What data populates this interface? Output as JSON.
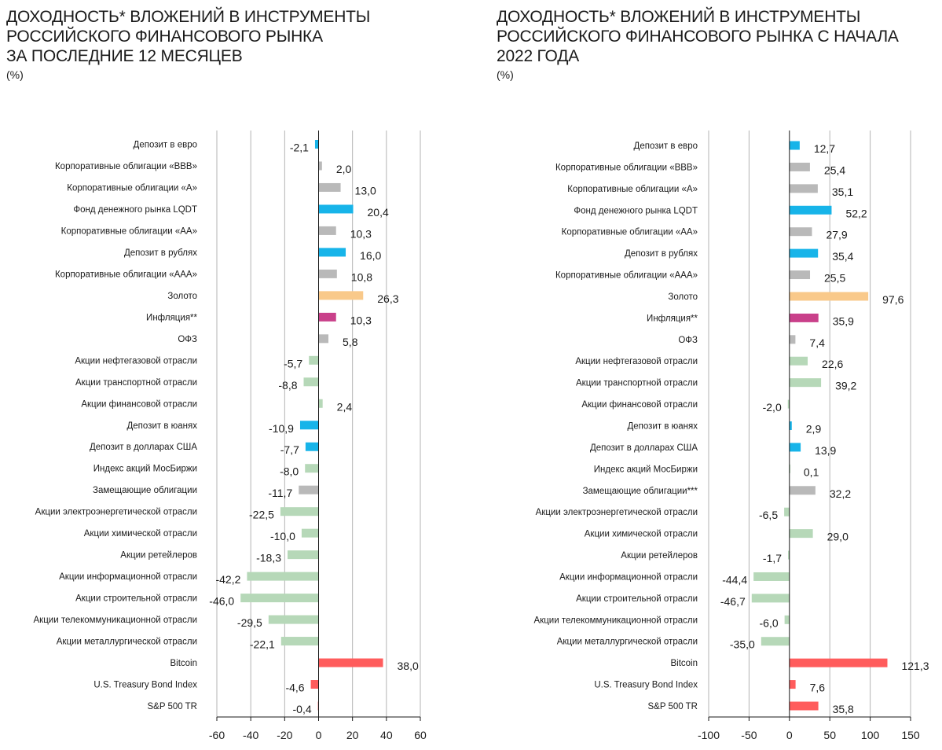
{
  "chart_data": [
    {
      "type": "bar",
      "orientation": "horizontal",
      "title_lines": [
        "ДОХОДНОСТЬ* ВЛОЖЕНИЙ В ИНСТРУМЕНТЫ",
        "РОССИЙСКОГО ФИНАНСОВОГО РЫНКА",
        "ЗА ПОСЛЕДНИЕ 12 МЕСЯЦЕВ"
      ],
      "unit": "(%)",
      "xlim": [
        -60,
        60
      ],
      "xticks": [
        "-60",
        "-40",
        "-20",
        "0",
        "20",
        "40",
        "60"
      ],
      "grid": true,
      "categories": [
        "Депозит в евро",
        "Корпоративные облигации «BBB»",
        "Корпоративные облигации «A»",
        "Фонд денежного рынка LQDT",
        "Корпоративные облигации «AA»",
        "Депозит в рублях",
        "Корпоративные облигации «AAA»",
        "Золото",
        "Инфляция**",
        "ОФЗ",
        "Акции нефтегазовой отрасли",
        "Акции транспортной отрасли",
        "Акции финансовой отрасли",
        "Депозит в юанях",
        "Депозит в долларах США",
        "Индекс акций МосБиржи",
        "Замещающие облигации",
        "Акции электроэнергетической отрасли",
        "Акции химической отрасли",
        "Акции ретейлеров",
        "Акции информационной отрасли",
        "Акции строительной отрасли",
        "Акции телекоммуникационной отрасли",
        "Акции металлургической отрасли",
        "Bitcoin",
        "U.S. Treasury Bond Index",
        "S&P 500 TR"
      ],
      "values": [
        -2.1,
        2.0,
        13.0,
        20.4,
        10.3,
        16.0,
        10.8,
        26.3,
        10.3,
        5.8,
        -5.7,
        -8.8,
        2.4,
        -10.9,
        -7.7,
        -8.0,
        -11.7,
        -22.5,
        -10.0,
        -18.3,
        -42.2,
        -46.0,
        -29.5,
        -22.1,
        38.0,
        -4.6,
        -0.4
      ],
      "labels": [
        "-2,1",
        "2,0",
        "13,0",
        "20,4",
        "10,3",
        "16,0",
        "10,8",
        "26,3",
        "10,3",
        "5,8",
        "-5,7",
        "-8,8",
        "2,4",
        "-10,9",
        "-7,7",
        "-8,0",
        "-11,7",
        "-22,5",
        "-10,0",
        "-18,3",
        "-42,2",
        "-46,0",
        "-29,5",
        "-22,1",
        "38,0",
        "-4,6",
        "-0,4"
      ],
      "colors": [
        "#17b4e9",
        "#b9b9b9",
        "#b9b9b9",
        "#17b4e9",
        "#b9b9b9",
        "#17b4e9",
        "#b9b9b9",
        "#f9c98a",
        "#c9408a",
        "#b9b9b9",
        "#b6d8b8",
        "#b6d8b8",
        "#b6d8b8",
        "#17b4e9",
        "#17b4e9",
        "#b6d8b8",
        "#b9b9b9",
        "#b6d8b8",
        "#b6d8b8",
        "#b6d8b8",
        "#b6d8b8",
        "#b6d8b8",
        "#b6d8b8",
        "#b6d8b8",
        "#ff5c5c",
        "#ff5c5c",
        "#ff5c5c"
      ]
    },
    {
      "type": "bar",
      "orientation": "horizontal",
      "title_lines": [
        "ДОХОДНОСТЬ* ВЛОЖЕНИЙ В ИНСТРУМЕНТЫ",
        "РОССИЙСКОГО ФИНАНСОВОГО РЫНКА С НАЧАЛА",
        "2022 ГОДА"
      ],
      "unit": "(%)",
      "xlim": [
        -100,
        150
      ],
      "xticks": [
        "-100",
        "-50",
        "0",
        "50",
        "100",
        "150"
      ],
      "grid": true,
      "categories": [
        "Депозит в евро",
        "Корпоративные облигации «BBB»",
        "Корпоративные облигации «A»",
        "Фонд денежного рынка LQDT",
        "Корпоративные облигации «AA»",
        "Депозит в рублях",
        "Корпоративные облигации «AAA»",
        "Золото",
        "Инфляция**",
        "ОФЗ",
        "Акции нефтегазовой отрасли",
        "Акции транспортной отрасли",
        "Акции финансовой отрасли",
        "Депозит в юанях",
        "Депозит в долларах США",
        "Индекс акций МосБиржи",
        "Замещающие облигации***",
        "Акции электроэнергетической отрасли",
        "Акции химической отрасли",
        "Акции ретейлеров",
        "Акции информационной отрасли",
        "Акции строительной отрасли",
        "Акции телекоммуникационной отрасли",
        "Акции металлургической отрасли",
        "Bitcoin",
        "U.S. Treasury Bond Index",
        "S&P 500 TR"
      ],
      "values": [
        12.7,
        25.4,
        35.1,
        52.2,
        27.9,
        35.4,
        25.5,
        97.6,
        35.9,
        7.4,
        22.6,
        39.2,
        -2.0,
        2.9,
        13.9,
        0.1,
        32.2,
        -6.5,
        29.0,
        -1.7,
        -44.4,
        -46.7,
        -6.0,
        -35.0,
        121.3,
        7.6,
        35.8
      ],
      "labels": [
        "12,7",
        "25,4",
        "35,1",
        "52,2",
        "27,9",
        "35,4",
        "25,5",
        "97,6",
        "35,9",
        "7,4",
        "22,6",
        "39,2",
        "-2,0",
        "2,9",
        "13,9",
        "0,1",
        "32,2",
        "-6,5",
        "29,0",
        "-1,7",
        "-44,4",
        "-46,7",
        "-6,0",
        "-35,0",
        "121,3",
        "7,6",
        "35,8"
      ],
      "colors": [
        "#17b4e9",
        "#b9b9b9",
        "#b9b9b9",
        "#17b4e9",
        "#b9b9b9",
        "#17b4e9",
        "#b9b9b9",
        "#f9c98a",
        "#c9408a",
        "#b9b9b9",
        "#b6d8b8",
        "#b6d8b8",
        "#b6d8b8",
        "#17b4e9",
        "#17b4e9",
        "#b6d8b8",
        "#b9b9b9",
        "#b6d8b8",
        "#b6d8b8",
        "#b6d8b8",
        "#b6d8b8",
        "#b6d8b8",
        "#b6d8b8",
        "#b6d8b8",
        "#ff5c5c",
        "#ff5c5c",
        "#ff5c5c"
      ]
    }
  ]
}
